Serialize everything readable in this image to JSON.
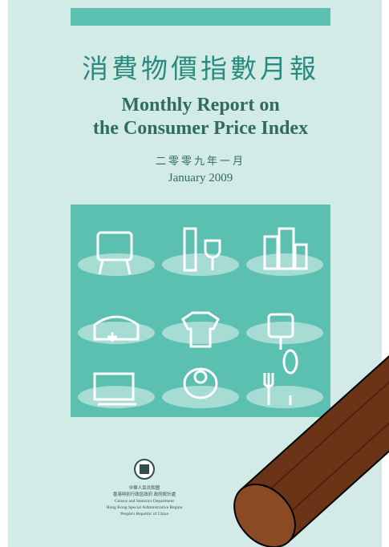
{
  "cover": {
    "title_zh": "消費物價指數月報",
    "title_en_line1": "Monthly Report on",
    "title_en_line2": "the Consumer Price Index",
    "date_zh": "二零零九年一月",
    "date_en": "January 2009",
    "publisher_lines": [
      "中華人民共和國",
      "香港特別行政區政府 政府統計處",
      "Census and Statistics Department",
      "Hong Kong Special Administrative Region",
      "People's Republic of China"
    ]
  }
}
